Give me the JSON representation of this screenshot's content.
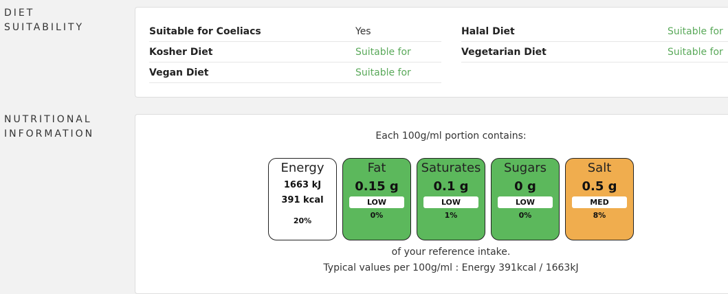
{
  "diet": {
    "section_label_line1": "DIET",
    "section_label_line2": "SUITABILITY",
    "left": [
      {
        "name": "Suitable for Coeliacs",
        "value": "Yes"
      },
      {
        "name": "Kosher Diet",
        "value": "Suitable for"
      },
      {
        "name": "Vegan Diet",
        "value": "Suitable for"
      }
    ],
    "right": [
      {
        "name": "Halal Diet",
        "value": "Suitable for"
      },
      {
        "name": "Vegetarian Diet",
        "value": "Suitable for"
      }
    ]
  },
  "nutrition": {
    "section_label_line1": "NUTRITIONAL",
    "section_label_line2": "INFORMATION",
    "portion_header": "Each 100g/ml portion contains:",
    "energy": {
      "title": "Energy",
      "kj": "1663 kJ",
      "kcal": "391 kcal",
      "pct": "20%"
    },
    "lights": [
      {
        "title": "Fat",
        "value": "0.15 g",
        "level": "LOW",
        "pct": "0%",
        "color": "#5cb85c"
      },
      {
        "title": "Saturates",
        "value": "0.1 g",
        "level": "LOW",
        "pct": "1%",
        "color": "#5cb85c"
      },
      {
        "title": "Sugars",
        "value": "0 g",
        "level": "LOW",
        "pct": "0%",
        "color": "#5cb85c"
      },
      {
        "title": "Salt",
        "value": "0.5 g",
        "level": "MED",
        "pct": "8%",
        "color": "#f0ad4e"
      }
    ],
    "reference_text": "of your reference intake.",
    "typical_text": "Typical values per 100g/ml : Energy 391kcal / 1663kJ"
  }
}
